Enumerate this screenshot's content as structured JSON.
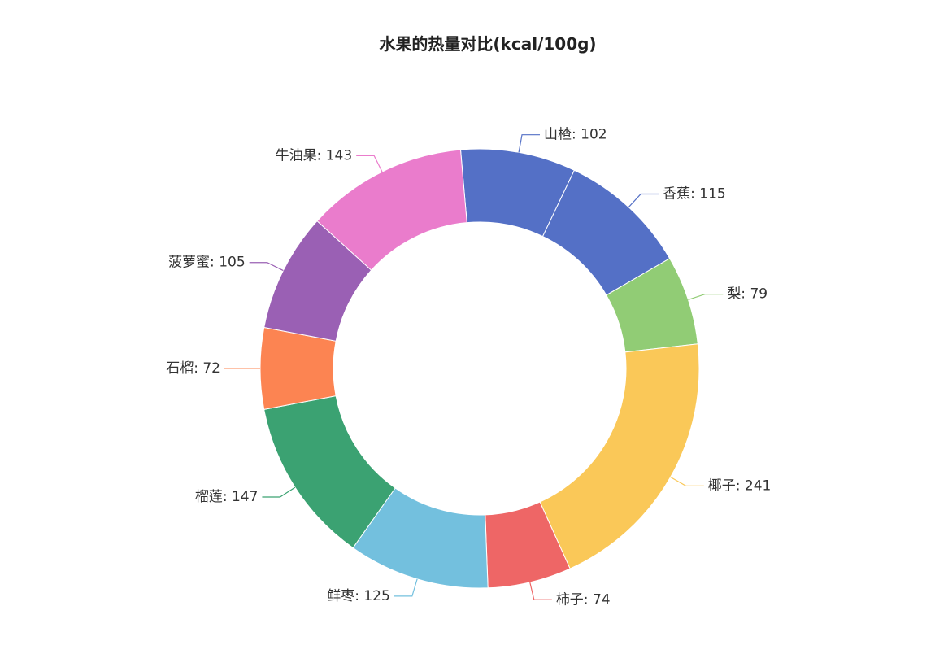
{
  "chart_data": {
    "type": "pie",
    "title": "水果的热量对比(kcal/100g)",
    "label_separator": ": ",
    "slices": [
      {
        "name": "山楂",
        "value": 102,
        "color": "#5470c6"
      },
      {
        "name": "香蕉",
        "value": 115,
        "color": "#5470c6"
      },
      {
        "name": "梨",
        "value": 79,
        "color": "#91cc75"
      },
      {
        "name": "椰子",
        "value": 241,
        "color": "#fac858"
      },
      {
        "name": "柿子",
        "value": 74,
        "color": "#ee6666"
      },
      {
        "name": "鲜枣",
        "value": 125,
        "color": "#73c0de"
      },
      {
        "name": "榴莲",
        "value": 147,
        "color": "#3ba272"
      },
      {
        "name": "石榴",
        "value": 72,
        "color": "#fc8452"
      },
      {
        "name": "菠萝蜜",
        "value": 105,
        "color": "#9a60b4"
      },
      {
        "name": "牛油果",
        "value": 143,
        "color": "#ea7ccc"
      }
    ]
  }
}
